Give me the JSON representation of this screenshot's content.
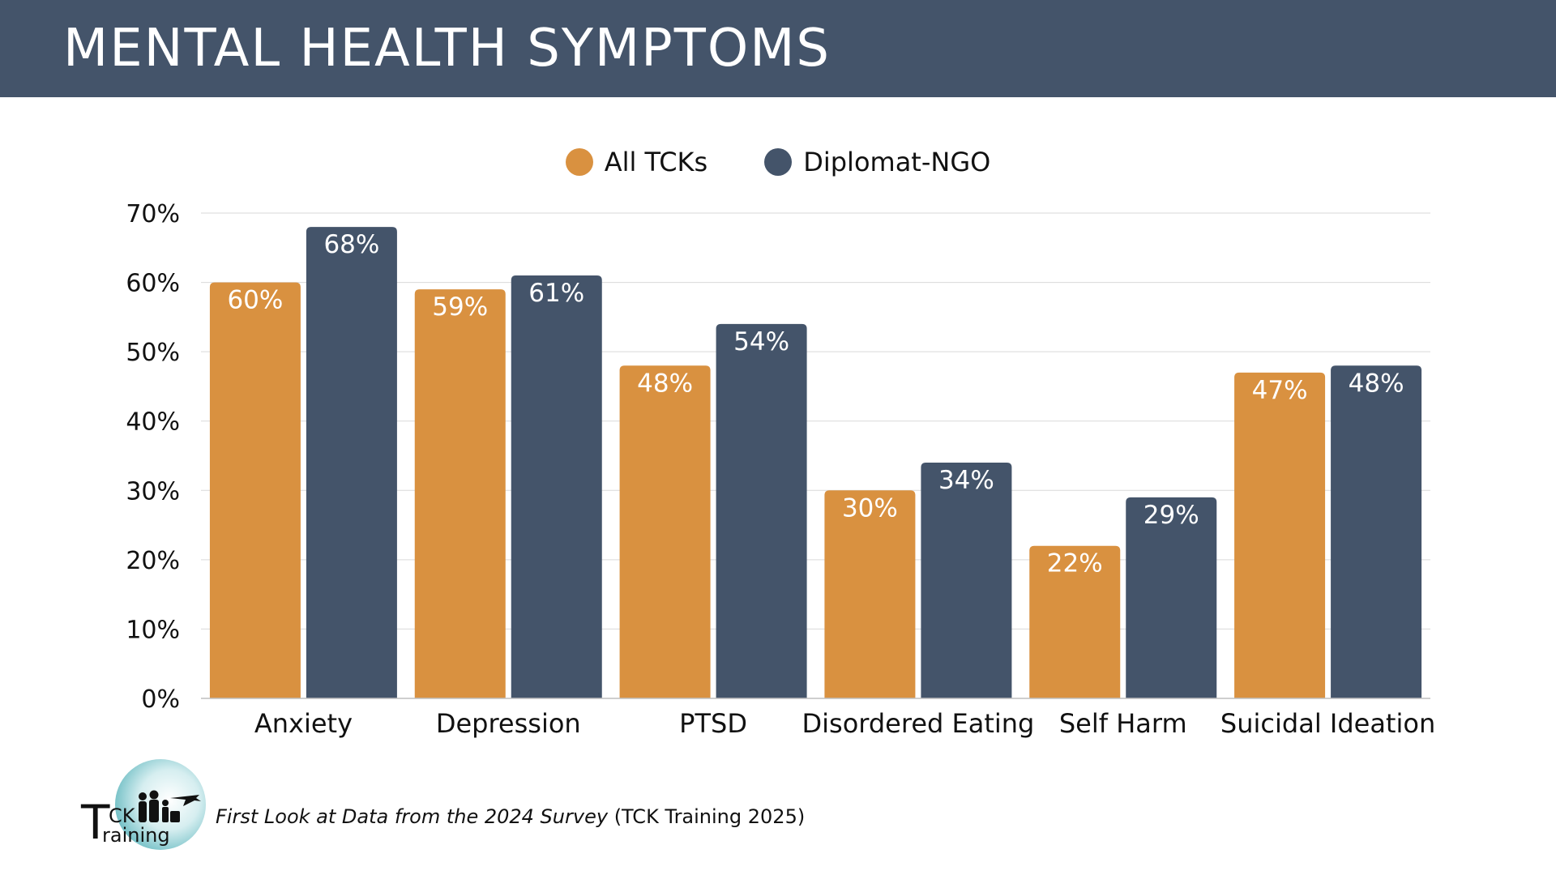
{
  "header": {
    "title": "MENTAL HEALTH SYMPTOMS"
  },
  "colors": {
    "header_bg": "#44546a",
    "all_tcks": "#d99140",
    "diplomat_ngo": "#44546a"
  },
  "chart_data": {
    "type": "bar",
    "title": "",
    "xlabel": "",
    "ylabel": "",
    "categories": [
      "Anxiety",
      "Depression",
      "PTSD",
      "Disordered Eating",
      "Self Harm",
      "Suicidal Ideation"
    ],
    "series": [
      {
        "name": "All TCKs",
        "color": "#d99140",
        "values": [
          60,
          59,
          48,
          30,
          22,
          47
        ],
        "labels": [
          "60%",
          "59%",
          "48%",
          "30%",
          "22%",
          "47%"
        ]
      },
      {
        "name": "Diplomat-NGO",
        "color": "#44546a",
        "values": [
          68,
          61,
          54,
          34,
          29,
          48
        ],
        "labels": [
          "68%",
          "61%",
          "54%",
          "34%",
          "29%",
          "48%"
        ]
      }
    ],
    "ylim": [
      0,
      70
    ],
    "yticks": [
      0,
      10,
      20,
      30,
      40,
      50,
      60,
      70
    ],
    "ytick_labels": [
      "0%",
      "10%",
      "20%",
      "30%",
      "40%",
      "50%",
      "60%",
      "70%"
    ],
    "grid": true,
    "legend": "top-center"
  },
  "footer": {
    "logo_text_1": "CK",
    "logo_text_2": "raining",
    "logo_letter": "T",
    "citation_title": "First Look at Data from the 2024 Survey",
    "citation_source": "(TCK Training 2025)"
  }
}
